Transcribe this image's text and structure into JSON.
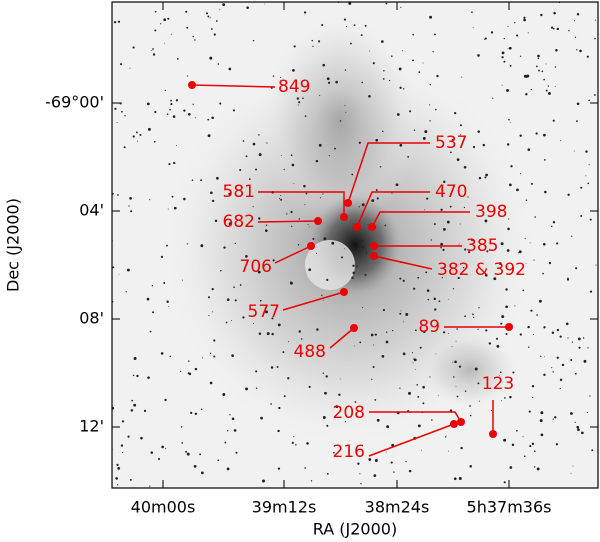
{
  "axes": {
    "x_label": "RA (J2000)",
    "y_label": "Dec (J2000)",
    "x_ticks": [
      "40m00s",
      "39m12s",
      "38m24s",
      "5h37m36s"
    ],
    "y_ticks": [
      "-69°00'",
      "04'",
      "08'",
      "12'"
    ]
  },
  "annotations": [
    {
      "label": "849"
    },
    {
      "label": "537"
    },
    {
      "label": "581"
    },
    {
      "label": "470"
    },
    {
      "label": "682"
    },
    {
      "label": "398"
    },
    {
      "label": "706"
    },
    {
      "label": "385"
    },
    {
      "label": "382 & 392"
    },
    {
      "label": "577"
    },
    {
      "label": "89"
    },
    {
      "label": "488"
    },
    {
      "label": "123"
    },
    {
      "label": "208"
    },
    {
      "label": "216"
    }
  ]
}
